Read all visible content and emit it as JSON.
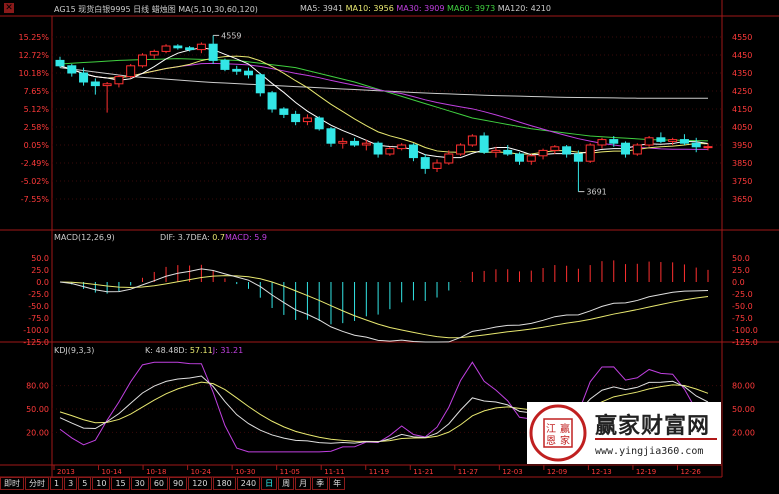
{
  "header": {
    "title": "AG15 现货白银9995 日线 蜡烛图 MA(5,10,30,60,120)",
    "ma5_label": "MA5:",
    "ma5": "3941",
    "ma10_label": "MA10:",
    "ma10": "3956",
    "ma30_label": "MA30:",
    "ma30": "3909",
    "ma60_label": "MA60:",
    "ma60": "3973",
    "ma120_label": "MA120:",
    "ma120": "4210"
  },
  "macd_header": {
    "title": "MACD(12,26,9)",
    "dif_label": "DIF:",
    "dif": "3.7",
    "dea_label": "DEA:",
    "dea": "0.7",
    "macd_label": "MACD:",
    "macd": "5.9"
  },
  "kdj_header": {
    "title": "KDJ(9,3,3)",
    "k_label": "K:",
    "k": "48.48",
    "d_label": "D:",
    "d": "57.11",
    "j_label": "J:",
    "j": "31.21"
  },
  "tabs": [
    "即时",
    "分时",
    "1",
    "3",
    "5",
    "10",
    "15",
    "30",
    "60",
    "90",
    "120",
    "180",
    "240",
    "日",
    "周",
    "月",
    "季",
    "年"
  ],
  "active_tab": "日",
  "logo": {
    "name": "赢家财富网",
    "url": "www.yingjia360.com",
    "seal": "江恩赢家"
  },
  "colors": {
    "up": "#ff3030",
    "down": "#33e6e6",
    "ma5": "#ffffff",
    "ma10": "#e8e870",
    "ma30": "#c040e0",
    "ma60": "#40d040",
    "ma120": "#cccccc",
    "grid": "#a01818",
    "axis_text": "#ff3a3a"
  },
  "chart_data": [
    {
      "type": "candlestick",
      "title": "AG15 现货白银9995 日线",
      "left_ticks": [
        "15.25%",
        "12.72%",
        "10.18%",
        "7.65%",
        "5.12%",
        "2.58%",
        "0.05%",
        "-2.49%",
        "-5.02%",
        "-7.55%"
      ],
      "right_ticks": [
        4550,
        4450,
        4350,
        4250,
        4150,
        4050,
        3950,
        3850,
        3750,
        3650
      ],
      "ylim": [
        3600,
        4600
      ],
      "x_ticks": [
        "2013",
        "10-14",
        "10-18",
        "10-24",
        "10-30",
        "11-05",
        "11-11",
        "11-19",
        "11-21",
        "11-27",
        "12-03",
        "12-09",
        "12-13",
        "12-19",
        "12-26"
      ],
      "annotations": [
        {
          "label": "4559",
          "value": 4559,
          "index": 13
        },
        {
          "label": "3691",
          "value": 3691,
          "index": 44
        }
      ],
      "ohlc": [
        [
          4420,
          4440,
          4380,
          4390
        ],
        [
          4390,
          4400,
          4330,
          4350
        ],
        [
          4350,
          4380,
          4280,
          4300
        ],
        [
          4300,
          4320,
          4230,
          4280
        ],
        [
          4280,
          4300,
          4130,
          4290
        ],
        [
          4290,
          4340,
          4270,
          4330
        ],
        [
          4330,
          4400,
          4320,
          4390
        ],
        [
          4390,
          4460,
          4380,
          4450
        ],
        [
          4450,
          4480,
          4430,
          4470
        ],
        [
          4470,
          4510,
          4460,
          4500
        ],
        [
          4500,
          4510,
          4480,
          4490
        ],
        [
          4490,
          4500,
          4470,
          4480
        ],
        [
          4480,
          4520,
          4460,
          4510
        ],
        [
          4510,
          4559,
          4400,
          4420
        ],
        [
          4420,
          4430,
          4360,
          4370
        ],
        [
          4370,
          4390,
          4340,
          4360
        ],
        [
          4360,
          4380,
          4320,
          4340
        ],
        [
          4340,
          4350,
          4220,
          4240
        ],
        [
          4240,
          4250,
          4130,
          4150
        ],
        [
          4150,
          4160,
          4100,
          4120
        ],
        [
          4120,
          4140,
          4060,
          4080
        ],
        [
          4080,
          4120,
          4060,
          4100
        ],
        [
          4100,
          4110,
          4030,
          4040
        ],
        [
          4040,
          4050,
          3940,
          3960
        ],
        [
          3960,
          3990,
          3930,
          3970
        ],
        [
          3970,
          3990,
          3940,
          3950
        ],
        [
          3950,
          3980,
          3920,
          3960
        ],
        [
          3960,
          3970,
          3880,
          3900
        ],
        [
          3900,
          3940,
          3890,
          3930
        ],
        [
          3930,
          3960,
          3920,
          3950
        ],
        [
          3950,
          3960,
          3860,
          3880
        ],
        [
          3880,
          3900,
          3790,
          3820
        ],
        [
          3820,
          3870,
          3800,
          3850
        ],
        [
          3850,
          3920,
          3840,
          3900
        ],
        [
          3900,
          3960,
          3890,
          3950
        ],
        [
          3950,
          4010,
          3940,
          4000
        ],
        [
          4000,
          4020,
          3900,
          3910
        ],
        [
          3910,
          3940,
          3880,
          3920
        ],
        [
          3920,
          3950,
          3890,
          3900
        ],
        [
          3900,
          3910,
          3840,
          3860
        ],
        [
          3860,
          3900,
          3840,
          3890
        ],
        [
          3890,
          3930,
          3870,
          3920
        ],
        [
          3920,
          3950,
          3900,
          3940
        ],
        [
          3940,
          3950,
          3880,
          3900
        ],
        [
          3900,
          3920,
          3691,
          3860
        ],
        [
          3860,
          3960,
          3850,
          3950
        ],
        [
          3950,
          3990,
          3930,
          3980
        ],
        [
          3980,
          4000,
          3940,
          3960
        ],
        [
          3960,
          3970,
          3880,
          3900
        ],
        [
          3900,
          3960,
          3890,
          3950
        ],
        [
          3950,
          4000,
          3940,
          3990
        ],
        [
          3990,
          4020,
          3960,
          3970
        ],
        [
          3970,
          3990,
          3950,
          3980
        ],
        [
          3980,
          4010,
          3950,
          3960
        ],
        [
          3960,
          3990,
          3910,
          3940
        ],
        [
          3940,
          3960,
          3920,
          3941
        ]
      ],
      "ma60_path": [
        4400,
        4420,
        4430,
        4420,
        4380,
        4300,
        4200,
        4100,
        4040,
        4000,
        3980,
        3973
      ],
      "ma120_path": [
        4380,
        4330,
        4300,
        4280,
        4260,
        4240,
        4225,
        4215,
        4210,
        4210
      ]
    },
    {
      "type": "macd",
      "params": "12,26,9",
      "ticks": [
        50,
        25,
        0,
        -25,
        -50,
        -75,
        -100,
        -125
      ],
      "ylim": [
        -125,
        60
      ]
    },
    {
      "type": "kdj",
      "params": "9,3,3",
      "ticks": [
        80,
        50,
        20
      ],
      "ylim": [
        0,
        110
      ]
    }
  ]
}
